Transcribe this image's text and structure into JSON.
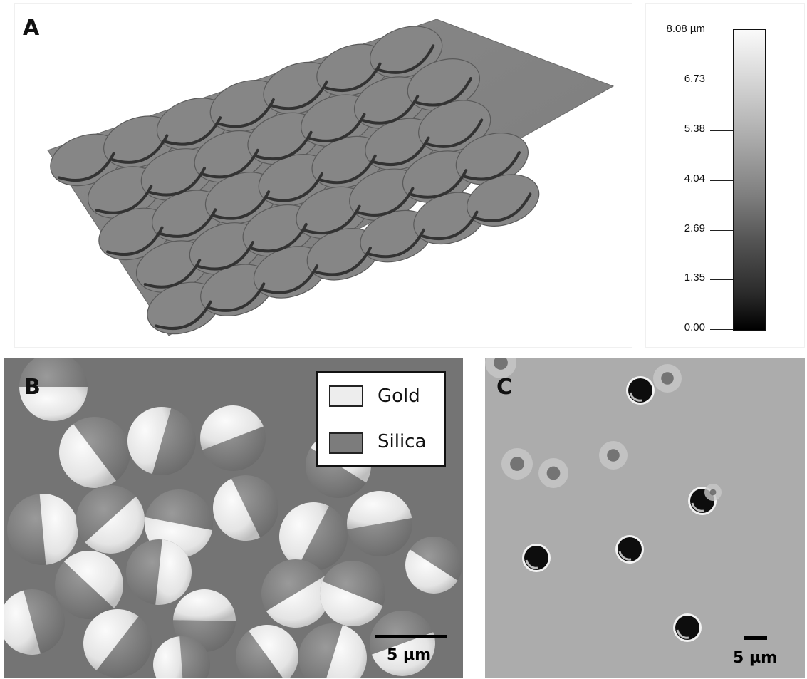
{
  "panel_a": {
    "letter": "A",
    "colorbar": {
      "ticks": [
        "8.08 µm",
        "6.73",
        "5.38",
        "4.04",
        "2.69",
        "1.35",
        "0.00"
      ]
    }
  },
  "panel_b": {
    "letter": "B",
    "legend": [
      {
        "label": "Gold",
        "color": "#ededed"
      },
      {
        "label": "Silica",
        "color": "#7c7c7c"
      }
    ],
    "scale_bar_label": "5 µm"
  },
  "panel_c": {
    "letter": "C",
    "scale_bar_label": "5 µm"
  }
}
